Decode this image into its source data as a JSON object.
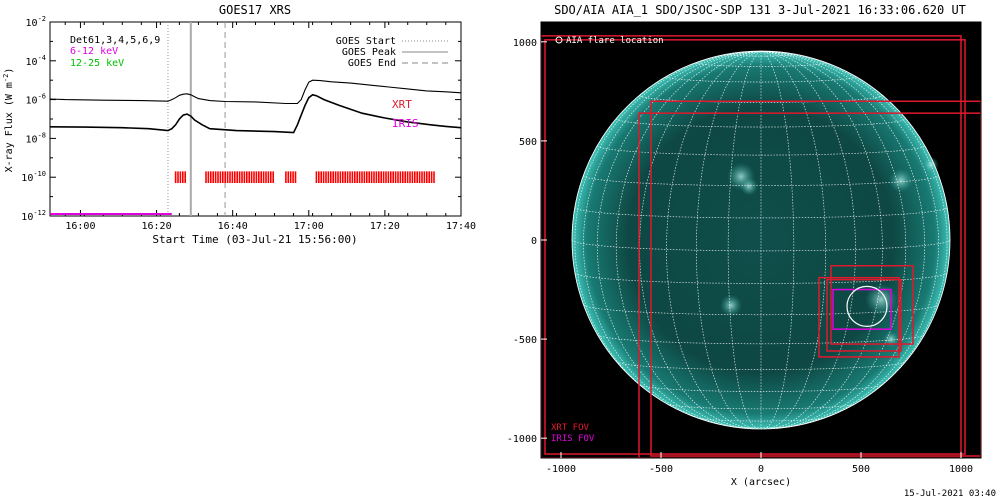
{
  "goes_chart": {
    "type": "line",
    "title": "GOES17 XRS",
    "ylabel_prefix": "X-ray Flux (W m",
    "ylabel_exp": "-2",
    "ylabel_suffix": ")",
    "xlabel": "Start Time (03-Jul-21 15:56:00)",
    "x_range_minutes": [
      -4,
      104
    ],
    "x_ticks": [
      {
        "minute": 4,
        "label": "16:00"
      },
      {
        "minute": 24,
        "label": "16:20"
      },
      {
        "minute": 44,
        "label": "16:40"
      },
      {
        "minute": 64,
        "label": "17:00"
      },
      {
        "minute": 84,
        "label": "17:20"
      },
      {
        "minute": 104,
        "label": "17:40"
      }
    ],
    "y_log_range": [
      -12,
      -2
    ],
    "y_ticks": [
      {
        "exp": -2,
        "base": "10",
        "sup": "-2"
      },
      {
        "exp": -4,
        "base": "10",
        "sup": "-4"
      },
      {
        "exp": -6,
        "base": "10",
        "sup": "-6"
      },
      {
        "exp": -8,
        "base": "10",
        "sup": "-8"
      },
      {
        "exp": -10,
        "base": "10",
        "sup": "-10"
      },
      {
        "exp": -12,
        "base": "10",
        "sup": "-12"
      }
    ],
    "legend_left": [
      {
        "text": "Det61,3,4,5,6,9",
        "color": "#000000"
      },
      {
        "text": "6-12 keV",
        "color": "#e000e0"
      },
      {
        "text": "12-25 keV",
        "color": "#00c000"
      }
    ],
    "legend_right": [
      {
        "text": "GOES Start",
        "dash": "1,2",
        "color": "#888888"
      },
      {
        "text": "GOES Peak",
        "dash": "none",
        "color": "#888888"
      },
      {
        "text": "GOES End",
        "dash": "6,4",
        "color": "#888888"
      }
    ],
    "annotations": {
      "xrt": "XRT",
      "iris": "IRIS"
    },
    "goes_times": {
      "start": 27,
      "peak": 33,
      "end": 42
    },
    "series": [
      {
        "key": "long",
        "color": "#000000",
        "points": [
          [
            -4,
            -5.97
          ],
          [
            0,
            -6.0
          ],
          [
            10,
            -6.03
          ],
          [
            20,
            -6.05
          ],
          [
            27,
            -6.08
          ],
          [
            28,
            -6.0
          ],
          [
            29,
            -5.9
          ],
          [
            30,
            -5.78
          ],
          [
            31,
            -5.72
          ],
          [
            32,
            -5.7
          ],
          [
            33,
            -5.75
          ],
          [
            34,
            -5.85
          ],
          [
            35,
            -5.95
          ],
          [
            38,
            -6.05
          ],
          [
            42,
            -6.1
          ],
          [
            50,
            -6.12
          ],
          [
            58,
            -6.2
          ],
          [
            61,
            -6.2
          ],
          [
            62,
            -6.0
          ],
          [
            63,
            -5.5
          ],
          [
            64,
            -5.1
          ],
          [
            65,
            -5.0
          ],
          [
            67,
            -5.02
          ],
          [
            70,
            -5.08
          ],
          [
            75,
            -5.15
          ],
          [
            80,
            -5.25
          ],
          [
            85,
            -5.35
          ],
          [
            90,
            -5.45
          ],
          [
            95,
            -5.55
          ],
          [
            100,
            -5.6
          ],
          [
            104,
            -5.65
          ]
        ]
      },
      {
        "key": "short",
        "color": "#000000",
        "points": [
          [
            -4,
            -7.4
          ],
          [
            5,
            -7.42
          ],
          [
            15,
            -7.45
          ],
          [
            22,
            -7.5
          ],
          [
            27,
            -7.6
          ],
          [
            28,
            -7.5
          ],
          [
            29,
            -7.3
          ],
          [
            30,
            -7.0
          ],
          [
            31,
            -6.8
          ],
          [
            32,
            -6.75
          ],
          [
            33,
            -6.85
          ],
          [
            34,
            -7.05
          ],
          [
            36,
            -7.3
          ],
          [
            38,
            -7.5
          ],
          [
            45,
            -7.6
          ],
          [
            55,
            -7.65
          ],
          [
            60,
            -7.7
          ],
          [
            61,
            -7.3
          ],
          [
            62,
            -6.8
          ],
          [
            63,
            -6.3
          ],
          [
            64,
            -5.9
          ],
          [
            65,
            -5.75
          ],
          [
            66,
            -5.8
          ],
          [
            68,
            -6.0
          ],
          [
            72,
            -6.3
          ],
          [
            78,
            -6.7
          ],
          [
            84,
            -6.95
          ],
          [
            90,
            -7.15
          ],
          [
            96,
            -7.3
          ],
          [
            100,
            -7.38
          ],
          [
            104,
            -7.45
          ]
        ]
      }
    ],
    "red_bars_minutes": [
      [
        29,
        32
      ],
      [
        37,
        55
      ],
      [
        58,
        61
      ],
      [
        66,
        97
      ]
    ],
    "red_bars_log_range": [
      -10.3,
      -9.7
    ],
    "magenta_line": {
      "minutes": [
        -4,
        28
      ],
      "log": -11.9
    }
  },
  "sdo_panel": {
    "title": "SDO/AIA AIA_1 SDO/JSOC-SDP 131  3-Jul-2021 16:33:06.620 UT",
    "flare_label": "AIA flare location",
    "xlabel": "X (arcsec)",
    "x_range": [
      -1100,
      1100
    ],
    "y_range": [
      -1100,
      1100
    ],
    "x_ticks": [
      {
        "value": -1000,
        "label": "-1000"
      },
      {
        "value": -500,
        "label": "-500"
      },
      {
        "value": 0,
        "label": "0"
      },
      {
        "value": 500,
        "label": "500"
      },
      {
        "value": 1000,
        "label": "1000"
      }
    ],
    "y_ticks": [
      {
        "value": 1000,
        "label": "1000"
      },
      {
        "value": 500,
        "label": "500"
      },
      {
        "value": 0,
        "label": "0"
      },
      {
        "value": -500,
        "label": "-500"
      },
      {
        "value": -1000,
        "label": "-1000"
      }
    ],
    "sun_radius": 945,
    "fov_legend": [
      {
        "text": "XRT FOV",
        "color": "#e0192d"
      },
      {
        "text": "IRIS FOV",
        "color": "#e000e0"
      }
    ],
    "xrt_fovs": [
      {
        "x0": -1100,
        "y0": -1100,
        "x1": 1000,
        "y1": 1030
      },
      {
        "x0": -1080,
        "y0": -1080,
        "x1": 1020,
        "y1": 1010
      },
      {
        "x0": -550,
        "y0": -1090,
        "x1": 1100,
        "y1": 700
      },
      {
        "x0": -610,
        "y0": -1110,
        "x1": 1100,
        "y1": 640
      },
      {
        "x0": 350,
        "y0": -525,
        "x1": 760,
        "y1": -130
      },
      {
        "x0": 330,
        "y0": -560,
        "x1": 700,
        "y1": -200
      },
      {
        "x0": 290,
        "y0": -590,
        "x1": 690,
        "y1": -190
      }
    ],
    "iris_fovs": [
      {
        "x0": 360,
        "y0": -450,
        "x1": 650,
        "y1": -250
      }
    ],
    "flare": {
      "x": 530,
      "y": -335,
      "r": 100
    }
  },
  "timestamp": "15-Jul-2021 03:40"
}
